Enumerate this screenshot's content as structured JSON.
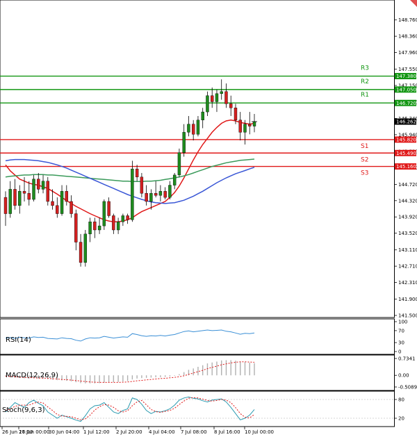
{
  "colors": {
    "bull": "#1e8c1e",
    "bear": "#d42020",
    "resistance": "#129612",
    "support": "#e01818",
    "ma_fast": "#e01818",
    "ma_mid": "#3a9a5a",
    "ma_slow": "#3a57d6",
    "rsi": "#3a8fd6",
    "macd_hist": "#b0b0b0",
    "macd_signal": "#e01818",
    "stoch_k": "#2a9ab0",
    "stoch_d": "#e01818",
    "last_price": "#000000"
  },
  "chart_data": [
    {
      "type": "candlestick",
      "ylim": [
        141.5,
        148.9
      ],
      "y_ticks": [
        "148.760",
        "148.360",
        "147.960",
        "147.550",
        "147.150",
        "146.740",
        "146.340",
        "145.940",
        "145.530",
        "145.130",
        "144.720",
        "144.320",
        "143.920",
        "143.520",
        "143.110",
        "142.710",
        "142.310",
        "141.900",
        "141.500"
      ],
      "x_ticks": [
        "26 Jun 16:00",
        "27 Jun 00:00",
        "30 Jun 04:00",
        "1 Jul 12:00",
        "2 Jul 20:00",
        "4 Jul 04:00",
        "7 Jul 08:00",
        "8 Jul 16:00",
        "10 Jul 00:00"
      ],
      "candles": [
        [
          144.4,
          144.55,
          143.7,
          144.0
        ],
        [
          144.0,
          144.8,
          143.9,
          144.6
        ],
        [
          144.6,
          144.85,
          144.1,
          144.2
        ],
        [
          144.2,
          144.7,
          144.0,
          144.55
        ],
        [
          144.55,
          144.9,
          144.3,
          144.5
        ],
        [
          144.5,
          144.8,
          144.2,
          144.35
        ],
        [
          144.35,
          144.95,
          144.3,
          144.85
        ],
        [
          144.85,
          145.0,
          144.5,
          144.6
        ],
        [
          144.6,
          144.95,
          144.5,
          144.8
        ],
        [
          144.8,
          144.9,
          144.2,
          144.3
        ],
        [
          144.3,
          144.6,
          144.1,
          144.2
        ],
        [
          144.2,
          144.4,
          143.9,
          144.0
        ],
        [
          144.0,
          144.7,
          143.95,
          144.55
        ],
        [
          144.55,
          144.7,
          144.2,
          144.3
        ],
        [
          144.3,
          144.45,
          143.9,
          144.0
        ],
        [
          144.0,
          144.1,
          143.1,
          143.3
        ],
        [
          143.3,
          143.5,
          142.7,
          142.8
        ],
        [
          142.8,
          143.6,
          142.7,
          143.5
        ],
        [
          143.5,
          143.9,
          143.3,
          143.8
        ],
        [
          143.8,
          143.9,
          143.4,
          143.6
        ],
        [
          143.6,
          143.9,
          143.5,
          143.7
        ],
        [
          143.7,
          144.35,
          143.6,
          144.3
        ],
        [
          144.3,
          144.4,
          143.9,
          143.95
        ],
        [
          143.95,
          144.0,
          143.5,
          143.6
        ],
        [
          143.6,
          143.9,
          143.5,
          143.8
        ],
        [
          143.8,
          144.0,
          143.7,
          143.95
        ],
        [
          143.95,
          144.0,
          143.75,
          143.85
        ],
        [
          143.85,
          145.3,
          143.8,
          145.1
        ],
        [
          145.1,
          145.2,
          144.8,
          144.9
        ],
        [
          144.9,
          145.0,
          144.4,
          144.5
        ],
        [
          144.5,
          144.7,
          144.2,
          144.3
        ],
        [
          144.3,
          144.6,
          144.1,
          144.5
        ],
        [
          144.5,
          144.8,
          144.4,
          144.45
        ],
        [
          144.45,
          144.7,
          144.3,
          144.55
        ],
        [
          144.55,
          144.65,
          144.35,
          144.4
        ],
        [
          144.4,
          144.8,
          144.35,
          144.7
        ],
        [
          144.7,
          145.0,
          144.6,
          144.95
        ],
        [
          144.95,
          145.6,
          144.9,
          145.5
        ],
        [
          145.5,
          146.2,
          145.4,
          146.0
        ],
        [
          146.0,
          146.4,
          145.9,
          146.2
        ],
        [
          146.2,
          146.3,
          145.8,
          145.95
        ],
        [
          145.95,
          146.4,
          145.9,
          146.3
        ],
        [
          146.3,
          146.6,
          146.1,
          146.5
        ],
        [
          146.5,
          147.0,
          146.4,
          146.9
        ],
        [
          146.9,
          147.1,
          146.6,
          146.75
        ],
        [
          146.75,
          147.05,
          146.5,
          146.95
        ],
        [
          146.95,
          147.3,
          146.8,
          147.0
        ],
        [
          147.0,
          147.2,
          146.6,
          146.7
        ],
        [
          146.7,
          146.9,
          146.4,
          146.6
        ],
        [
          146.6,
          146.7,
          146.2,
          146.3
        ],
        [
          146.3,
          146.5,
          145.8,
          146.0
        ],
        [
          146.0,
          146.3,
          145.7,
          146.2
        ],
        [
          146.2,
          146.5,
          145.95,
          146.15
        ],
        [
          146.15,
          146.45,
          146.0,
          146.26
        ]
      ],
      "moving_averages": [
        {
          "values": [
            145.2,
            145.05,
            144.95,
            144.85,
            144.8,
            144.75,
            144.72,
            144.7,
            144.66,
            144.62,
            144.55,
            144.48,
            144.4,
            144.32,
            144.25,
            144.18,
            144.12,
            144.06,
            144.0,
            143.95,
            143.9,
            143.85,
            143.82,
            143.8,
            143.8,
            143.82,
            143.85,
            143.9,
            143.98,
            144.05,
            144.1,
            144.15,
            144.2,
            144.25,
            144.3,
            144.4,
            144.52,
            144.68,
            144.88,
            145.1,
            145.32,
            145.52,
            145.7,
            145.85,
            146.0,
            146.12,
            146.22,
            146.28,
            146.3,
            146.28,
            146.24,
            146.22,
            146.2,
            146.22
          ]
        },
        {
          "values": [
            144.9,
            144.92,
            144.93,
            144.94,
            144.95,
            144.95,
            144.96,
            144.96,
            144.96,
            144.95,
            144.95,
            144.94,
            144.93,
            144.92,
            144.91,
            144.9,
            144.89,
            144.88,
            144.87,
            144.86,
            144.85,
            144.84,
            144.83,
            144.82,
            144.81,
            144.8,
            144.8,
            144.79,
            144.79,
            144.79,
            144.8,
            144.8,
            144.81,
            144.82,
            144.84,
            144.86,
            144.88,
            144.9,
            144.93,
            144.96,
            145.0,
            145.04,
            145.08,
            145.12,
            145.16,
            145.19,
            145.22,
            145.25,
            145.27,
            145.29,
            145.31,
            145.32,
            145.33,
            145.34
          ]
        },
        {
          "values": [
            145.3,
            145.32,
            145.33,
            145.33,
            145.33,
            145.32,
            145.31,
            145.3,
            145.28,
            145.26,
            145.23,
            145.2,
            145.16,
            145.12,
            145.07,
            145.02,
            144.97,
            144.92,
            144.87,
            144.82,
            144.77,
            144.72,
            144.67,
            144.62,
            144.57,
            144.52,
            144.47,
            144.43,
            144.39,
            144.35,
            144.32,
            144.29,
            144.27,
            144.26,
            144.25,
            144.26,
            144.27,
            144.3,
            144.33,
            144.38,
            144.43,
            144.49,
            144.55,
            144.62,
            144.69,
            144.76,
            144.82,
            144.88,
            144.93,
            144.98,
            145.02,
            145.06,
            145.1,
            145.14
          ]
        }
      ],
      "levels": [
        {
          "name": "R3",
          "value": 147.38,
          "badge": "147.380",
          "kind": "resistance"
        },
        {
          "name": "R2",
          "value": 147.05,
          "badge": "147.050",
          "kind": "resistance"
        },
        {
          "name": "R1",
          "value": 146.72,
          "badge": "146.720",
          "kind": "resistance"
        },
        {
          "name": "S1",
          "value": 145.82,
          "badge": "145.820",
          "kind": "support"
        },
        {
          "name": "S2",
          "value": 145.49,
          "badge": "145.490",
          "kind": "support"
        },
        {
          "name": "S3",
          "value": 145.16,
          "badge": "145.160",
          "kind": "support"
        }
      ],
      "last_price": {
        "value": 146.262,
        "badge": "146.262"
      }
    },
    {
      "type": "line",
      "title": "RSI(14)",
      "ylim": [
        0,
        100
      ],
      "y_ticks": [
        "100",
        "70",
        "30",
        "0"
      ],
      "values": [
        45,
        47,
        44,
        48,
        46,
        45,
        49,
        47,
        48,
        44,
        43,
        42,
        46,
        44,
        43,
        38,
        35,
        42,
        46,
        45,
        46,
        51,
        48,
        45,
        47,
        49,
        48,
        60,
        57,
        53,
        51,
        53,
        52,
        54,
        52,
        55,
        57,
        62,
        67,
        69,
        66,
        68,
        70,
        72,
        70,
        71,
        72,
        68,
        66,
        62,
        58,
        61,
        60,
        62
      ]
    },
    {
      "type": "bar",
      "title": "MACD(12,26,9)",
      "ylim": [
        -0.5089,
        0.7341
      ],
      "y_ticks": [
        "0.7341",
        "0.00",
        "-0.5089"
      ],
      "values": [
        -0.05,
        -0.08,
        -0.1,
        -0.12,
        -0.13,
        -0.14,
        -0.13,
        -0.14,
        -0.15,
        -0.17,
        -0.19,
        -0.21,
        -0.22,
        -0.24,
        -0.26,
        -0.3,
        -0.34,
        -0.35,
        -0.35,
        -0.35,
        -0.34,
        -0.32,
        -0.31,
        -0.3,
        -0.29,
        -0.27,
        -0.25,
        -0.18,
        -0.14,
        -0.12,
        -0.11,
        -0.1,
        -0.09,
        -0.08,
        -0.07,
        -0.05,
        -0.02,
        0.05,
        0.14,
        0.24,
        0.3,
        0.37,
        0.44,
        0.52,
        0.56,
        0.6,
        0.65,
        0.66,
        0.66,
        0.64,
        0.6,
        0.58,
        0.55,
        0.53
      ],
      "signal": [
        -0.04,
        -0.05,
        -0.06,
        -0.08,
        -0.09,
        -0.1,
        -0.11,
        -0.12,
        -0.12,
        -0.13,
        -0.15,
        -0.16,
        -0.18,
        -0.19,
        -0.21,
        -0.23,
        -0.25,
        -0.27,
        -0.29,
        -0.3,
        -0.31,
        -0.31,
        -0.31,
        -0.31,
        -0.31,
        -0.3,
        -0.29,
        -0.27,
        -0.24,
        -0.22,
        -0.2,
        -0.18,
        -0.16,
        -0.14,
        -0.13,
        -0.11,
        -0.09,
        -0.06,
        -0.02,
        0.04,
        0.1,
        0.16,
        0.22,
        0.29,
        0.35,
        0.4,
        0.46,
        0.5,
        0.54,
        0.57,
        0.59,
        0.59,
        0.58,
        0.57
      ]
    },
    {
      "type": "line",
      "title": "Stoch(9,6,3)",
      "ylim": [
        0,
        100
      ],
      "y_ticks": [
        "80",
        "20"
      ],
      "k": [
        40,
        55,
        70,
        62,
        55,
        70,
        78,
        68,
        60,
        40,
        30,
        20,
        30,
        25,
        20,
        14,
        10,
        28,
        50,
        60,
        62,
        70,
        55,
        40,
        35,
        45,
        50,
        85,
        80,
        65,
        45,
        35,
        42,
        40,
        44,
        50,
        62,
        78,
        85,
        88,
        84,
        82,
        76,
        72,
        78,
        80,
        82,
        72,
        55,
        35,
        15,
        20,
        30,
        48
      ],
      "d": [
        45,
        50,
        58,
        62,
        62,
        62,
        68,
        72,
        69,
        56,
        45,
        32,
        27,
        26,
        25,
        20,
        15,
        18,
        30,
        46,
        57,
        64,
        62,
        55,
        44,
        40,
        44,
        60,
        72,
        77,
        63,
        48,
        41,
        39,
        42,
        45,
        52,
        64,
        75,
        84,
        86,
        85,
        81,
        77,
        75,
        77,
        80,
        78,
        70,
        54,
        35,
        23,
        21,
        32
      ]
    }
  ]
}
